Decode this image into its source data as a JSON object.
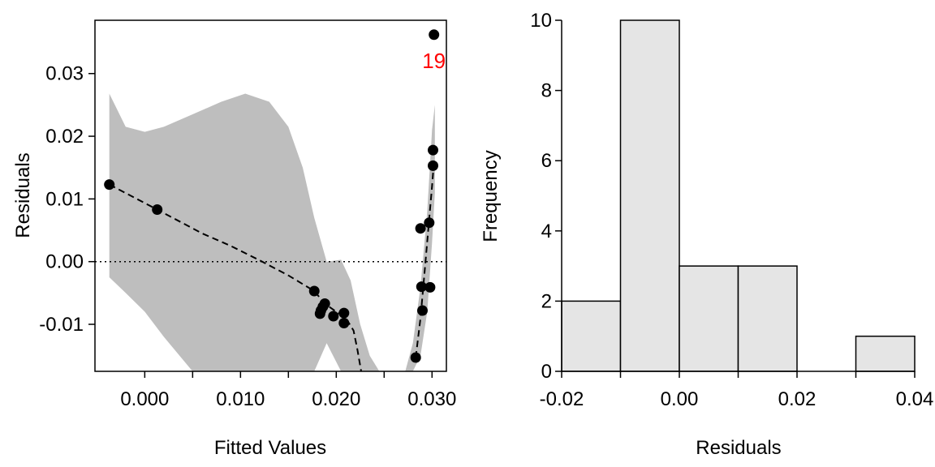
{
  "chart_data": [
    {
      "type": "scatter",
      "title": "",
      "xlabel": "Fitted Values",
      "ylabel": "Residuals",
      "xlim": [
        -0.0052,
        0.0315
      ],
      "ylim": [
        -0.0175,
        0.0385
      ],
      "xticks": [
        0.0,
        0.005,
        0.01,
        0.015,
        0.02,
        0.025,
        0.03
      ],
      "xtick_labels": [
        "0.000",
        "",
        "0.010",
        "",
        "0.020",
        "",
        "0.030"
      ],
      "yticks": [
        -0.01,
        0.0,
        0.01,
        0.02,
        0.03
      ],
      "ytick_labels": [
        "-0.01",
        "0.00",
        "0.01",
        "0.02",
        "0.03"
      ],
      "reference_line_y": 0.0,
      "points": [
        {
          "x": -0.0037,
          "y": 0.0123
        },
        {
          "x": 0.0013,
          "y": 0.0083
        },
        {
          "x": 0.0177,
          "y": -0.0047
        },
        {
          "x": 0.0183,
          "y": -0.0083
        },
        {
          "x": 0.0184,
          "y": -0.0078
        },
        {
          "x": 0.0186,
          "y": -0.0072
        },
        {
          "x": 0.0188,
          "y": -0.0067
        },
        {
          "x": 0.0197,
          "y": -0.0087
        },
        {
          "x": 0.0208,
          "y": -0.0082
        },
        {
          "x": 0.0208,
          "y": -0.0098
        },
        {
          "x": 0.0283,
          "y": -0.0153
        },
        {
          "x": 0.0288,
          "y": 0.0053
        },
        {
          "x": 0.0289,
          "y": -0.004
        },
        {
          "x": 0.029,
          "y": -0.0078
        },
        {
          "x": 0.0297,
          "y": 0.0062
        },
        {
          "x": 0.0298,
          "y": -0.0041
        },
        {
          "x": 0.0301,
          "y": 0.0153
        },
        {
          "x": 0.0301,
          "y": 0.0178
        },
        {
          "x": 0.0302,
          "y": 0.0362
        }
      ],
      "labeled_point": {
        "label": "19",
        "x": 0.0302,
        "y": 0.0362,
        "color": "#ff0000"
      },
      "smooth_curve": {
        "x": [
          -0.0037,
          0.0013,
          0.006,
          0.009,
          0.012,
          0.015,
          0.0177,
          0.0188,
          0.02,
          0.021,
          0.0218,
          0.0222,
          0.0226
        ],
        "y": [
          0.0123,
          0.0083,
          0.0045,
          0.0025,
          0.0002,
          -0.0022,
          -0.0047,
          -0.0067,
          -0.008,
          -0.009,
          -0.011,
          -0.014,
          -0.0175
        ]
      },
      "smooth_curve_2": {
        "x": [
          0.0283,
          0.0288,
          0.0292,
          0.0296,
          0.03,
          0.0302
        ],
        "y": [
          -0.0153,
          -0.009,
          -0.002,
          0.005,
          0.012,
          0.016
        ]
      },
      "confidence_band": {
        "color": "#bebebe",
        "x": [
          -0.0037,
          -0.002,
          0.0,
          0.002,
          0.005,
          0.008,
          0.0105,
          0.013,
          0.015,
          0.0165,
          0.0177,
          0.019,
          0.0205,
          0.0215,
          0.0225,
          0.0235,
          0.0245
        ],
        "upper": [
          0.0268,
          0.0215,
          0.0207,
          0.0215,
          0.0235,
          0.0255,
          0.0268,
          0.0255,
          0.0215,
          0.015,
          0.007,
          0.0,
          0.0003,
          -0.003,
          -0.01,
          -0.015,
          -0.0175
        ],
        "lower": [
          -0.0025,
          -0.005,
          -0.008,
          -0.012,
          -0.0175,
          null,
          null,
          null,
          null,
          null,
          -0.0175,
          -0.013,
          -0.0175,
          null,
          null,
          null,
          null
        ]
      },
      "confidence_band_2": {
        "x": [
          0.0272,
          0.028,
          0.0288,
          0.0295,
          0.03,
          0.0303
        ],
        "upper": [
          -0.0175,
          -0.013,
          -0.004,
          0.008,
          0.021,
          0.025
        ],
        "lower": [
          -0.0175,
          -0.0175,
          -0.015,
          -0.008,
          0.003,
          0.011
        ]
      }
    },
    {
      "type": "bar",
      "title": "",
      "xlabel": "Residuals",
      "ylabel": "Frequency",
      "xlim": [
        -0.02,
        0.04
      ],
      "ylim": [
        0,
        10
      ],
      "xticks": [
        -0.02,
        -0.01,
        0.0,
        0.01,
        0.02,
        0.03,
        0.04
      ],
      "xtick_labels": [
        "-0.02",
        "",
        "0.00",
        "",
        "0.02",
        "",
        "0.04"
      ],
      "yticks": [
        0,
        2,
        4,
        6,
        8,
        10
      ],
      "ytick_labels": [
        "0",
        "2",
        "4",
        "6",
        "8",
        "10"
      ],
      "bin_edges": [
        -0.02,
        -0.01,
        0.0,
        0.01,
        0.02,
        0.03,
        0.04
      ],
      "values": [
        2,
        10,
        3,
        3,
        0,
        1
      ],
      "bar_color": "#e5e5e5"
    }
  ]
}
